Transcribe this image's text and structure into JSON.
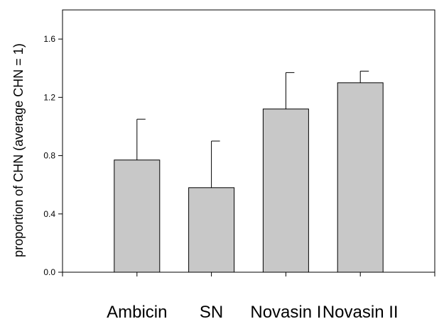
{
  "chart_data": {
    "type": "bar",
    "title": "",
    "xlabel": "",
    "ylabel": "proportion of CHN (average CHN = 1)",
    "categories": [
      "Ambicin",
      "SN",
      "Novasin I",
      "Novasin II"
    ],
    "values": [
      0.77,
      0.58,
      1.12,
      1.3
    ],
    "error_upper": [
      1.05,
      0.9,
      1.37,
      1.38
    ],
    "ylim": [
      0.0,
      1.8
    ],
    "yticks": [
      "0.0",
      "0.4",
      "0.8",
      "1.2",
      "1.6"
    ],
    "grid": false,
    "legend": "none",
    "colors": {
      "bar_fill": "#c8c8c8",
      "bar_stroke": "#000000"
    }
  }
}
